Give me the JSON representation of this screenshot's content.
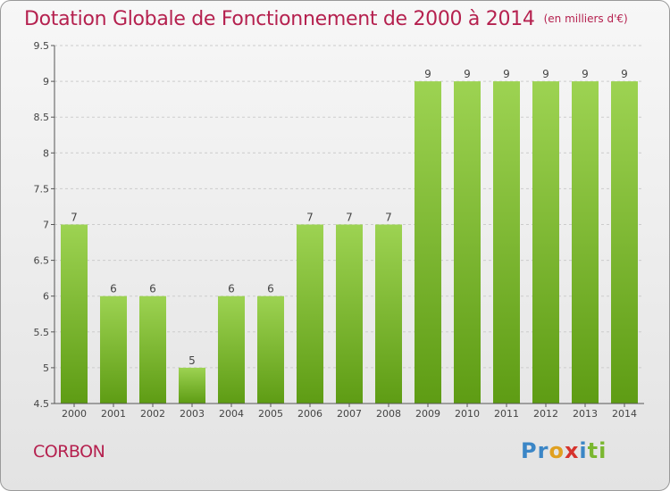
{
  "header": {
    "title": "Dotation Globale de Fonctionnement de 2000 à 2014",
    "unit": "(en milliers d'€)"
  },
  "footer": {
    "commune": "CORBON",
    "logo_letters": [
      {
        "char": "P",
        "color": "#3b86c6"
      },
      {
        "char": "r",
        "color": "#3b86c6"
      },
      {
        "char": "o",
        "color": "#e0a020"
      },
      {
        "char": "x",
        "color": "#d6332d"
      },
      {
        "char": "i",
        "color": "#3b86c6"
      },
      {
        "char": "t",
        "color": "#7ab730"
      },
      {
        "char": "i",
        "color": "#7ab730"
      }
    ]
  },
  "colors": {
    "bar_top": "#9dd352",
    "bar_bottom": "#5e9c14",
    "title": "#b5214f",
    "grid": "#cccccc",
    "label": "#444444"
  },
  "chart_data": {
    "type": "bar",
    "title": "Dotation Globale de Fonctionnement de 2000 à 2014",
    "subtitle": "(en milliers d'€)",
    "categories": [
      "2000",
      "2001",
      "2002",
      "2003",
      "2004",
      "2005",
      "2006",
      "2007",
      "2008",
      "2009",
      "2010",
      "2011",
      "2012",
      "2013",
      "2014"
    ],
    "values": [
      7,
      6,
      6,
      5,
      6,
      6,
      7,
      7,
      7,
      9,
      9,
      9,
      9,
      9,
      9
    ],
    "data_labels": [
      "7",
      "6",
      "6",
      "5",
      "6",
      "6",
      "7",
      "7",
      "7",
      "9",
      "9",
      "9",
      "9",
      "9",
      "9"
    ],
    "ylim": [
      4.5,
      9.5
    ],
    "yticks": [
      "4.5",
      "5",
      "5.5",
      "6",
      "6.5",
      "7",
      "7.5",
      "8",
      "8.5",
      "9",
      "9.5"
    ],
    "grid": true,
    "xlabel": "",
    "ylabel": ""
  }
}
